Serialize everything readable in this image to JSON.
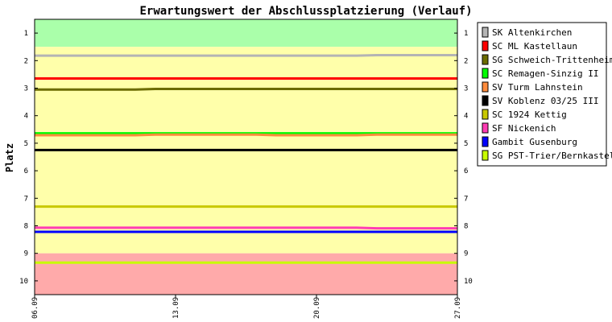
{
  "chart_data": {
    "type": "line",
    "title": "Erwartungswert der Abschlussplatzierung (Verlauf)",
    "ylabel": "Platz",
    "xlabel": "",
    "x_ticks": [
      "06.09",
      "13.09",
      "20.09",
      "27.09"
    ],
    "x_range": [
      "06.09",
      "27.09"
    ],
    "x_dates": [
      "06.09",
      "07.09",
      "08.09",
      "09.09",
      "10.09",
      "11.09",
      "12.09",
      "13.09",
      "14.09",
      "15.09",
      "16.09",
      "17.09",
      "18.09",
      "19.09",
      "20.09",
      "21.09",
      "22.09",
      "23.09",
      "24.09",
      "25.09",
      "26.09",
      "27.09"
    ],
    "y_ticks": [
      1,
      2,
      3,
      4,
      5,
      6,
      7,
      8,
      9,
      10
    ],
    "ylim": [
      10.5,
      0.5
    ],
    "y_inverted": true,
    "grid": false,
    "legend_position": "right",
    "background_zones": [
      {
        "from": 0.5,
        "to": 1.5,
        "color": "#aaffaa"
      },
      {
        "from": 1.5,
        "to": 9.0,
        "color": "#ffffaa"
      },
      {
        "from": 9.0,
        "to": 10.5,
        "color": "#ffaaaa"
      }
    ],
    "series": [
      {
        "name": "SK Altenkirchen",
        "color": "#b4b4b4",
        "values": [
          1.82,
          1.82,
          1.82,
          1.82,
          1.82,
          1.82,
          1.82,
          1.82,
          1.82,
          1.82,
          1.82,
          1.82,
          1.82,
          1.82,
          1.82,
          1.82,
          1.82,
          1.8,
          1.8,
          1.8,
          1.8,
          1.8
        ]
      },
      {
        "name": "SC ML Kastellaun",
        "color": "#ff0000",
        "values": [
          2.65,
          2.65,
          2.65,
          2.65,
          2.65,
          2.65,
          2.65,
          2.65,
          2.65,
          2.65,
          2.65,
          2.65,
          2.65,
          2.65,
          2.65,
          2.65,
          2.65,
          2.65,
          2.65,
          2.65,
          2.65,
          2.65
        ]
      },
      {
        "name": "SG Schweich-Trittenheim",
        "color": "#6b6b00",
        "values": [
          3.05,
          3.05,
          3.05,
          3.05,
          3.05,
          3.05,
          3.03,
          3.03,
          3.03,
          3.03,
          3.03,
          3.03,
          3.03,
          3.03,
          3.03,
          3.03,
          3.03,
          3.03,
          3.03,
          3.03,
          3.03,
          3.03
        ]
      },
      {
        "name": "SC Remagen-Sinzig II",
        "color": "#00ff00",
        "values": [
          4.64,
          4.64,
          4.64,
          4.64,
          4.64,
          4.64,
          4.64,
          4.64,
          4.64,
          4.64,
          4.64,
          4.64,
          4.64,
          4.64,
          4.64,
          4.64,
          4.64,
          4.64,
          4.64,
          4.64,
          4.64,
          4.64
        ]
      },
      {
        "name": "SV Turm Lahnstein",
        "color": "#ff8c3c",
        "values": [
          4.71,
          4.71,
          4.71,
          4.71,
          4.71,
          4.71,
          4.69,
          4.69,
          4.69,
          4.69,
          4.69,
          4.69,
          4.71,
          4.71,
          4.71,
          4.71,
          4.71,
          4.69,
          4.69,
          4.69,
          4.69,
          4.69
        ]
      },
      {
        "name": "SV Koblenz 03/25 III",
        "color": "#000000",
        "values": [
          5.25,
          5.25,
          5.25,
          5.25,
          5.25,
          5.25,
          5.25,
          5.25,
          5.25,
          5.25,
          5.25,
          5.25,
          5.25,
          5.25,
          5.25,
          5.25,
          5.25,
          5.25,
          5.25,
          5.25,
          5.25,
          5.25
        ]
      },
      {
        "name": "SC 1924 Kettig",
        "color": "#c8c800",
        "values": [
          7.3,
          7.3,
          7.3,
          7.3,
          7.3,
          7.3,
          7.3,
          7.3,
          7.3,
          7.3,
          7.3,
          7.3,
          7.3,
          7.3,
          7.3,
          7.3,
          7.3,
          7.3,
          7.3,
          7.3,
          7.3,
          7.3
        ]
      },
      {
        "name": "SF Nickenich",
        "color": "#ff3cb4",
        "values": [
          8.07,
          8.07,
          8.07,
          8.07,
          8.07,
          8.07,
          8.07,
          8.07,
          8.07,
          8.07,
          8.07,
          8.07,
          8.07,
          8.07,
          8.07,
          8.07,
          8.07,
          8.09,
          8.09,
          8.09,
          8.09,
          8.09
        ]
      },
      {
        "name": "Gambit Gusenburg",
        "color": "#0000ff",
        "values": [
          8.22,
          8.22,
          8.22,
          8.22,
          8.22,
          8.22,
          8.22,
          8.22,
          8.22,
          8.22,
          8.22,
          8.22,
          8.22,
          8.22,
          8.22,
          8.22,
          8.22,
          8.22,
          8.22,
          8.22,
          8.22,
          8.22
        ]
      },
      {
        "name": "SG PST-Trier/Bernkastel",
        "color": "#c8ff00",
        "values": [
          9.34,
          9.34,
          9.34,
          9.34,
          9.34,
          9.34,
          9.34,
          9.34,
          9.34,
          9.34,
          9.34,
          9.34,
          9.34,
          9.34,
          9.34,
          9.34,
          9.34,
          9.34,
          9.34,
          9.34,
          9.34,
          9.34
        ]
      }
    ]
  }
}
